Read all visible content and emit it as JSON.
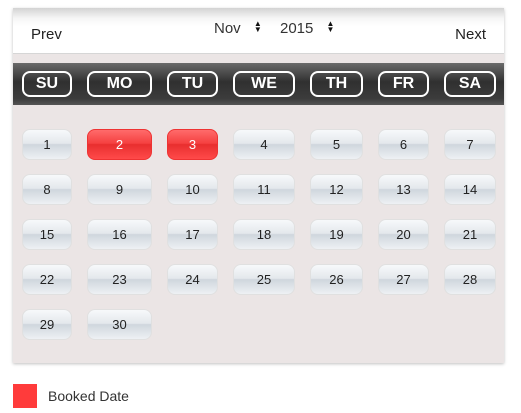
{
  "header": {
    "prev_label": "Prev",
    "next_label": "Next",
    "month": "Nov",
    "year": "2015"
  },
  "weekdays": [
    "SU",
    "MO",
    "TU",
    "WE",
    "TH",
    "FR",
    "SA"
  ],
  "days": [
    [
      "1",
      "2",
      "3",
      "4",
      "5",
      "6",
      "7"
    ],
    [
      "8",
      "9",
      "10",
      "11",
      "12",
      "13",
      "14"
    ],
    [
      "15",
      "16",
      "17",
      "18",
      "19",
      "20",
      "21"
    ],
    [
      "22",
      "23",
      "24",
      "25",
      "26",
      "27",
      "28"
    ],
    [
      "29",
      "30"
    ]
  ],
  "booked_days": [
    "2",
    "3"
  ],
  "colors": {
    "booked": "#ff3b3b"
  },
  "legend": {
    "booked_label": "Booked Date"
  }
}
